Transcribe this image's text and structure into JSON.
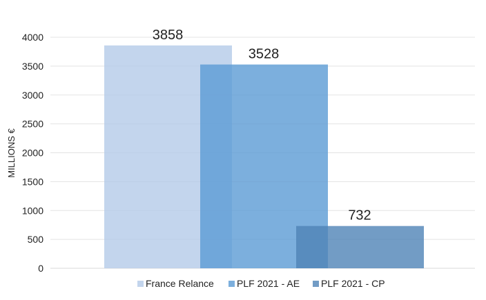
{
  "chart_data": {
    "type": "bar",
    "ylabel": "MILLIONS €",
    "ylim": [
      0,
      4000
    ],
    "yticks": [
      0,
      500,
      1000,
      1500,
      2000,
      2500,
      3000,
      3500,
      4000
    ],
    "grid": true,
    "legend_position": "bottom",
    "bars_overlap": true,
    "series": [
      {
        "name": "France Relance",
        "value": 3858,
        "label": "3858",
        "color": "#b4cbe8"
      },
      {
        "name": "PLF 2021 - AE",
        "value": 3528,
        "label": "3528",
        "color": "#5b9bd5"
      },
      {
        "name": "PLF 2021 - CP",
        "value": 732,
        "label": "732",
        "color": "#4f83b6"
      }
    ]
  }
}
